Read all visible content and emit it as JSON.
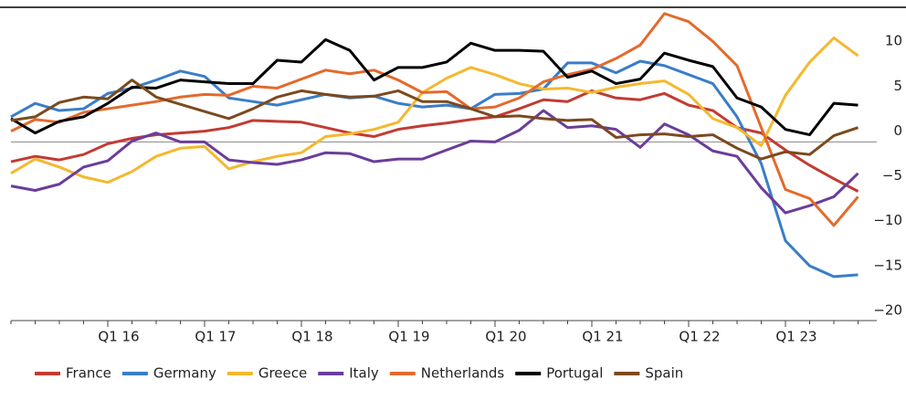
{
  "chart_data": {
    "type": "line",
    "categories": [
      null,
      null,
      null,
      null,
      "Q1 16",
      null,
      null,
      null,
      "Q1 17",
      null,
      null,
      null,
      "Q1 18",
      null,
      null,
      null,
      "Q1 19",
      null,
      null,
      null,
      "Q1 20",
      null,
      null,
      null,
      "Q1 21",
      null,
      null,
      null,
      "Q1 22",
      null,
      null,
      null,
      "Q1 23",
      null,
      null,
      null
    ],
    "ylim": [
      -20,
      15
    ],
    "yticks": [
      {
        "value": -20,
        "label": "−20"
      },
      {
        "value": -15,
        "label": "−15"
      },
      {
        "value": -10,
        "label": "−10"
      },
      {
        "value": -5,
        "label": "−5"
      },
      0,
      5,
      10
    ],
    "zero_line": true,
    "series": [
      {
        "name": "France",
        "color": "#c23b33",
        "values": [
          -2.2,
          -1.6,
          -2.0,
          -1.4,
          -0.2,
          0.4,
          0.8,
          1.0,
          1.2,
          1.6,
          2.4,
          2.3,
          2.2,
          1.6,
          1.0,
          0.6,
          1.4,
          1.8,
          2.1,
          2.5,
          2.8,
          3.7,
          4.7,
          4.5,
          5.7,
          4.9,
          4.7,
          5.4,
          4.1,
          3.5,
          1.6,
          1.0,
          -0.9,
          -2.6,
          -4.1,
          -5.5
        ]
      },
      {
        "name": "Germany",
        "color": "#3a7dc9",
        "values": [
          2.8,
          4.3,
          3.5,
          3.7,
          5.4,
          6.0,
          6.9,
          7.9,
          7.3,
          4.9,
          4.5,
          4.1,
          4.7,
          5.3,
          4.9,
          5.1,
          4.3,
          3.9,
          4.1,
          3.7,
          5.3,
          5.4,
          5.9,
          8.8,
          8.8,
          7.7,
          9.0,
          8.5,
          7.5,
          6.5,
          2.8,
          -2.4,
          -11.0,
          -13.8,
          -15.0,
          -14.8
        ]
      },
      {
        "name": "Greece",
        "color": "#f5b82e",
        "values": [
          -3.5,
          -1.9,
          -2.8,
          -3.9,
          -4.5,
          -3.3,
          -1.6,
          -0.7,
          -0.5,
          -3.0,
          -2.2,
          -1.6,
          -1.2,
          0.6,
          0.9,
          1.4,
          2.2,
          5.5,
          7.1,
          8.3,
          7.5,
          6.5,
          5.9,
          6.0,
          5.5,
          6.1,
          6.5,
          6.8,
          5.3,
          2.6,
          1.6,
          -0.4,
          5.2,
          8.9,
          11.6,
          9.6
        ]
      },
      {
        "name": "Italy",
        "color": "#6a3d9a",
        "values": [
          -4.9,
          -5.4,
          -4.7,
          -2.8,
          -2.1,
          0.1,
          1.0,
          0.0,
          0.0,
          -2.0,
          -2.3,
          -2.5,
          -2.0,
          -1.2,
          -1.3,
          -2.2,
          -1.9,
          -1.9,
          -0.9,
          0.1,
          0.0,
          1.3,
          3.5,
          1.6,
          1.8,
          1.4,
          -0.6,
          2.0,
          0.8,
          -1.0,
          -1.6,
          -5.1,
          -7.9,
          -7.1,
          -6.1,
          -3.5
        ]
      },
      {
        "name": "Netherlands",
        "color": "#e36a2c",
        "values": [
          1.2,
          2.5,
          2.2,
          3.3,
          3.7,
          4.1,
          4.5,
          5.0,
          5.3,
          5.2,
          6.2,
          6.0,
          7.0,
          8.0,
          7.6,
          8.0,
          6.9,
          5.5,
          5.6,
          3.7,
          3.9,
          4.9,
          6.7,
          7.5,
          8.1,
          9.3,
          10.8,
          14.3,
          13.4,
          11.2,
          8.5,
          1.6,
          -5.3,
          -6.3,
          -9.3,
          -6.1
        ]
      },
      {
        "name": "Portugal",
        "color": "#000000",
        "values": [
          2.6,
          1.0,
          2.3,
          2.8,
          4.3,
          6.1,
          6.0,
          6.9,
          6.7,
          6.5,
          6.5,
          9.1,
          8.9,
          11.4,
          10.2,
          6.9,
          8.3,
          8.3,
          8.9,
          11.0,
          10.2,
          10.2,
          10.1,
          7.2,
          7.9,
          6.5,
          7.0,
          9.9,
          9.1,
          8.4,
          4.9,
          3.9,
          1.4,
          0.8,
          4.3,
          4.1
        ]
      },
      {
        "name": "Spain",
        "color": "#7b4a1e",
        "values": [
          2.4,
          2.8,
          4.4,
          5.0,
          4.8,
          6.9,
          5.0,
          4.2,
          3.4,
          2.6,
          3.7,
          5.0,
          5.7,
          5.3,
          5.0,
          5.1,
          5.7,
          4.5,
          4.5,
          3.7,
          2.8,
          2.9,
          2.6,
          2.4,
          2.5,
          0.5,
          0.8,
          0.9,
          0.6,
          0.8,
          -0.7,
          -1.9,
          -1.1,
          -1.4,
          0.7,
          1.6
        ]
      }
    ]
  }
}
